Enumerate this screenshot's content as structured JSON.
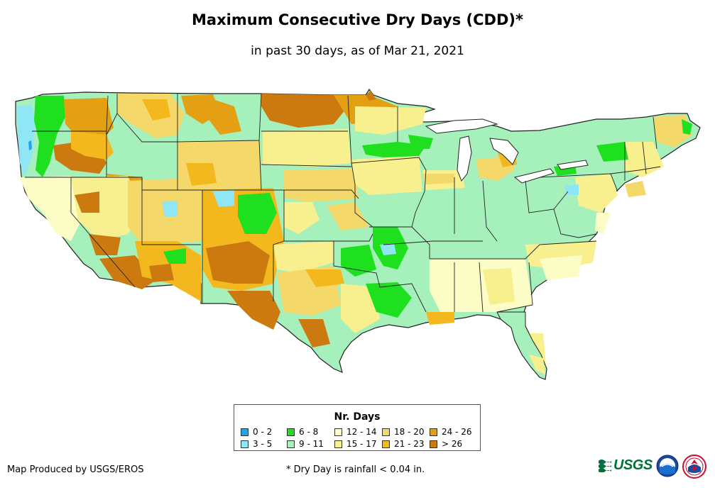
{
  "title": "Maximum Consecutive Dry Days (CDD)*",
  "subtitle": "in past 30 days, as of Mar 21, 2021",
  "legend": {
    "title": "Nr. Days",
    "items": [
      {
        "label": "0 - 2",
        "color": "#1fa5e8"
      },
      {
        "label": "3 - 5",
        "color": "#8fe6f5"
      },
      {
        "label": "6 - 8",
        "color": "#1ee01e"
      },
      {
        "label": "9 - 11",
        "color": "#a6f0bc"
      },
      {
        "label": "12 - 14",
        "color": "#fcfcc6"
      },
      {
        "label": "15 - 17",
        "color": "#f8f08e"
      },
      {
        "label": "18 - 20",
        "color": "#f4d86a"
      },
      {
        "label": "21 - 23",
        "color": "#f2b81e"
      },
      {
        "label": "24 - 26",
        "color": "#e2a012"
      },
      {
        "label": "> 26",
        "color": "#cc7a10"
      }
    ]
  },
  "footer": {
    "credit": "Map Produced by USGS/EROS",
    "note": "* Dry Day is rainfall < 0.04 in."
  },
  "logos": {
    "usgs": "USGS",
    "noaa": "noaa-logo",
    "nws": "nws-logo"
  }
}
